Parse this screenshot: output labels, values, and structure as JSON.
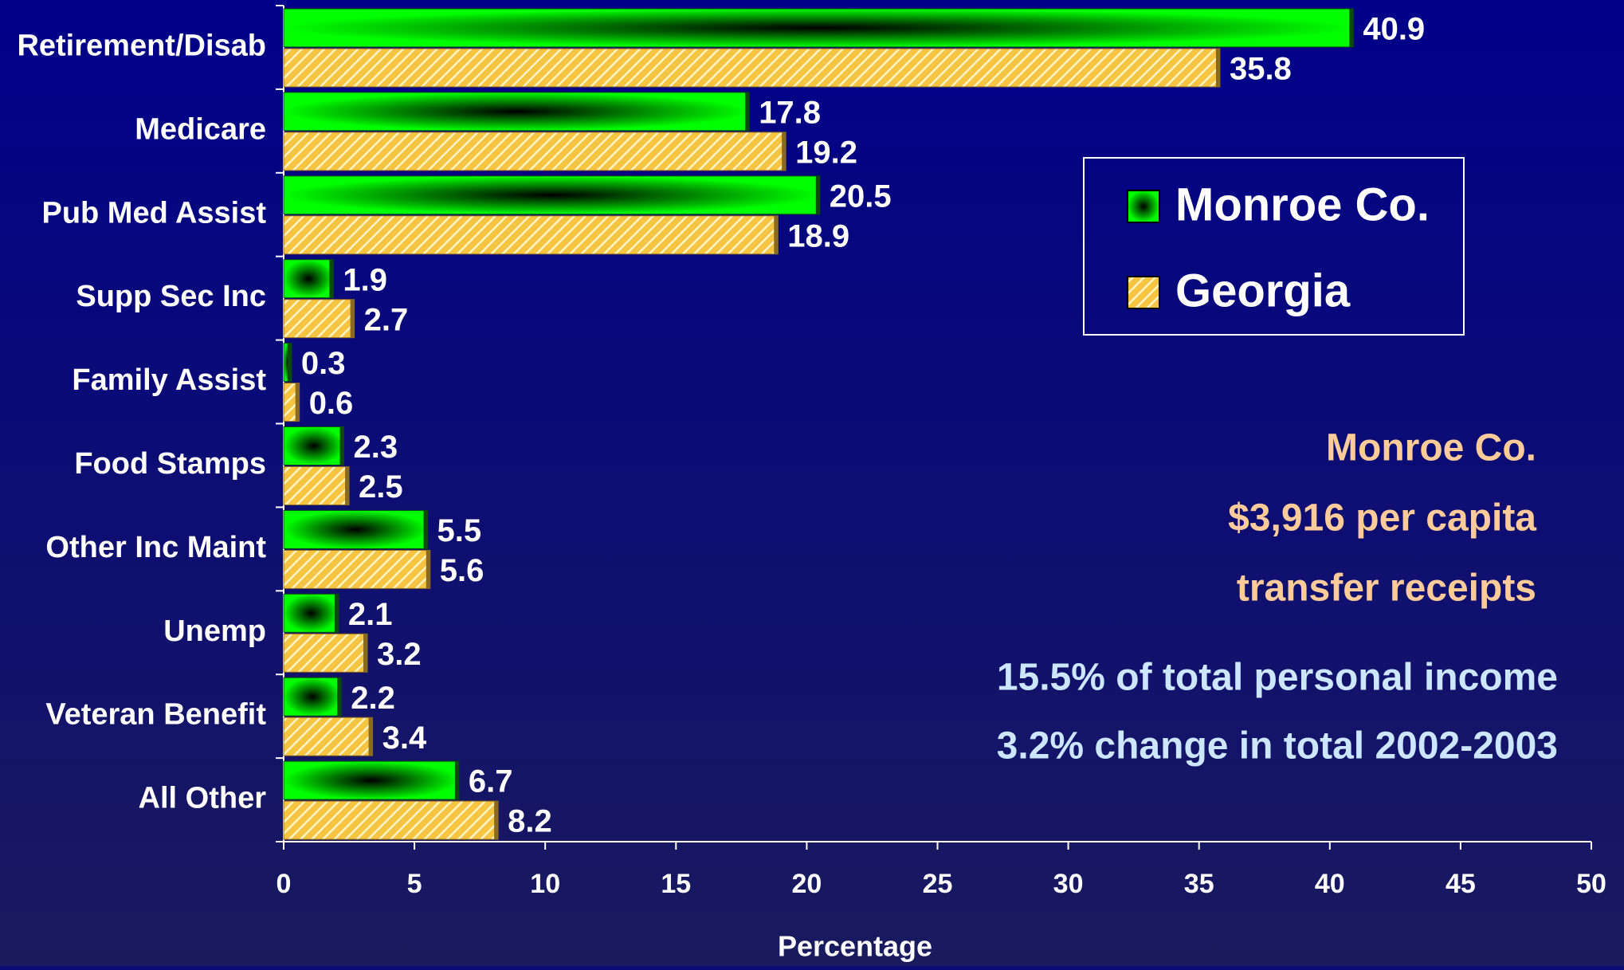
{
  "chart_data": {
    "type": "hbar",
    "categories": [
      "Retirement/Disab",
      "Medicare",
      "Pub Med Assist",
      "Supp Sec Inc",
      "Family Assist",
      "Food Stamps",
      "Other Inc Maint",
      "Unemp",
      "Veteran Benefit",
      "All Other"
    ],
    "series": [
      {
        "name": "Monroe Co.",
        "color": "#00ff00",
        "values": [
          40.9,
          17.8,
          20.5,
          1.9,
          0.3,
          2.3,
          5.5,
          2.1,
          2.2,
          6.7
        ]
      },
      {
        "name": "Georgia",
        "color": "#f5c542",
        "values": [
          35.8,
          19.2,
          18.9,
          2.7,
          0.6,
          2.5,
          5.6,
          3.2,
          3.4,
          8.2
        ]
      }
    ],
    "xlabel": "Percentage",
    "xlim": [
      0,
      50
    ],
    "xticks": [
      0,
      5,
      10,
      15,
      20,
      25,
      30,
      35,
      40,
      45,
      50
    ],
    "annotations": [
      "Monroe Co.",
      "$3,916 per capita",
      "transfer receipts",
      "15.5% of total personal income",
      "3.2% change in total 2002-2003"
    ]
  }
}
